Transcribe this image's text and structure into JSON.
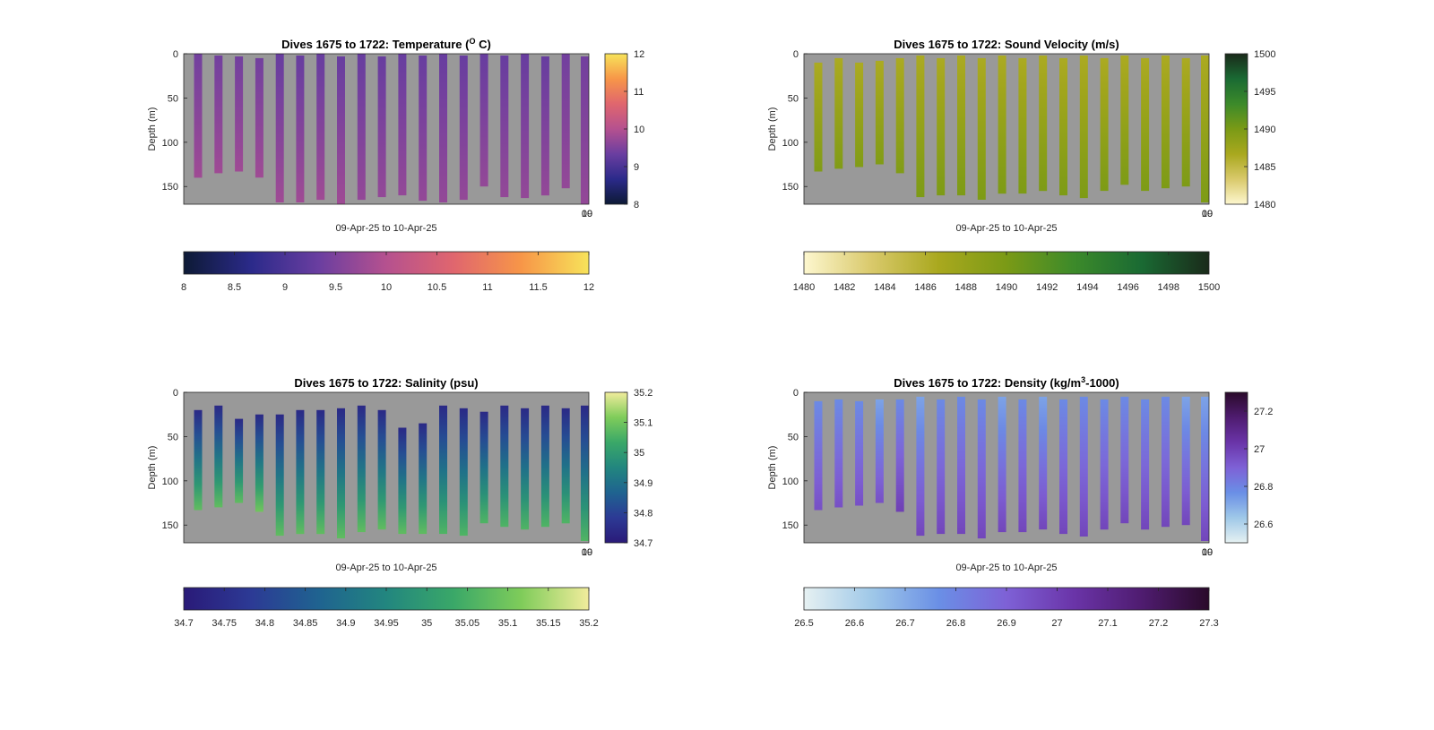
{
  "figure": {
    "background": "#ffffff",
    "axes_background": "#999999"
  },
  "chart_data": [
    {
      "type": "heatmap",
      "title": "Dives 1675 to 1722: Temperature (",
      "title_super": "O",
      "title_tail": " C)",
      "xlabel": "09-Apr-25 to 10-Apr-25",
      "ylabel": "Depth (m)",
      "x_tick_labels": [
        "09",
        "10"
      ],
      "y_ticks": [
        0,
        50,
        100,
        150
      ],
      "ylim": [
        0,
        170
      ],
      "y_reversed": true,
      "colormap": [
        "#0d1a35",
        "#2b2a8a",
        "#6a3ea0",
        "#b5518f",
        "#e0666e",
        "#f79648",
        "#f7e35a"
      ],
      "clim": [
        8,
        12
      ],
      "right_colorbar_ticks": [
        8,
        9,
        10,
        11,
        12
      ],
      "bottom_colorbar_ticks": [
        "8",
        "8.5",
        "9",
        "9.5",
        "10",
        "10.5",
        "11",
        "11.5",
        "12"
      ],
      "profiles": [
        {
          "top": 0,
          "bottom": 140,
          "v_top": 9.4,
          "v_bottom": 9.8
        },
        {
          "top": 2,
          "bottom": 135,
          "v_top": 9.4,
          "v_bottom": 9.8
        },
        {
          "top": 3,
          "bottom": 133,
          "v_top": 9.4,
          "v_bottom": 9.8
        },
        {
          "top": 5,
          "bottom": 140,
          "v_top": 9.4,
          "v_bottom": 9.8
        },
        {
          "top": 0,
          "bottom": 168,
          "v_top": 9.3,
          "v_bottom": 9.8
        },
        {
          "top": 2,
          "bottom": 168,
          "v_top": 9.3,
          "v_bottom": 9.8
        },
        {
          "top": 0,
          "bottom": 165,
          "v_top": 9.3,
          "v_bottom": 9.8
        },
        {
          "top": 3,
          "bottom": 171,
          "v_top": 9.3,
          "v_bottom": 9.8
        },
        {
          "top": 0,
          "bottom": 165,
          "v_top": 9.3,
          "v_bottom": 9.7
        },
        {
          "top": 3,
          "bottom": 162,
          "v_top": 9.3,
          "v_bottom": 9.7
        },
        {
          "top": 0,
          "bottom": 160,
          "v_top": 9.3,
          "v_bottom": 9.7
        },
        {
          "top": 2,
          "bottom": 166,
          "v_top": 9.3,
          "v_bottom": 9.7
        },
        {
          "top": 0,
          "bottom": 168,
          "v_top": 9.3,
          "v_bottom": 9.7
        },
        {
          "top": 2,
          "bottom": 165,
          "v_top": 9.3,
          "v_bottom": 9.7
        },
        {
          "top": 0,
          "bottom": 150,
          "v_top": 9.3,
          "v_bottom": 9.7
        },
        {
          "top": 2,
          "bottom": 162,
          "v_top": 9.3,
          "v_bottom": 9.7
        },
        {
          "top": 0,
          "bottom": 163,
          "v_top": 9.3,
          "v_bottom": 9.7
        },
        {
          "top": 3,
          "bottom": 160,
          "v_top": 9.3,
          "v_bottom": 9.7
        },
        {
          "top": 0,
          "bottom": 152,
          "v_top": 9.4,
          "v_bottom": 9.7
        },
        {
          "top": 3,
          "bottom": 170,
          "v_top": 9.4,
          "v_bottom": 9.7
        }
      ]
    },
    {
      "type": "heatmap",
      "title": "Dives 1675 to 1722: Sound Velocity (m/s)",
      "title_super": "",
      "title_tail": "",
      "xlabel": "09-Apr-25 to 10-Apr-25",
      "ylabel": "Depth (m)",
      "x_tick_labels": [
        "09",
        "10"
      ],
      "y_ticks": [
        0,
        50,
        100,
        150
      ],
      "ylim": [
        0,
        170
      ],
      "y_reversed": true,
      "colormap": [
        "#fdf7cf",
        "#d9c96b",
        "#a9a81e",
        "#7a9a16",
        "#3c8a2a",
        "#1a6a33",
        "#1a2a1a"
      ],
      "clim": [
        1480,
        1500
      ],
      "right_colorbar_ticks": [
        1480,
        1485,
        1490,
        1495,
        1500
      ],
      "bottom_colorbar_ticks": [
        "1480",
        "1482",
        "1484",
        "1486",
        "1488",
        "1490",
        "1492",
        "1494",
        "1496",
        "1498",
        "1500"
      ],
      "profiles": [
        {
          "top": 10,
          "bottom": 133,
          "v_top": 1486.5,
          "v_bottom": 1489.5
        },
        {
          "top": 5,
          "bottom": 130,
          "v_top": 1486.5,
          "v_bottom": 1489.5
        },
        {
          "top": 10,
          "bottom": 128,
          "v_top": 1486.5,
          "v_bottom": 1489.5
        },
        {
          "top": 8,
          "bottom": 125,
          "v_top": 1486.5,
          "v_bottom": 1489.5
        },
        {
          "top": 5,
          "bottom": 135,
          "v_top": 1486.5,
          "v_bottom": 1489.5
        },
        {
          "top": 2,
          "bottom": 162,
          "v_top": 1486.5,
          "v_bottom": 1489.8
        },
        {
          "top": 5,
          "bottom": 160,
          "v_top": 1486.5,
          "v_bottom": 1489.8
        },
        {
          "top": 2,
          "bottom": 160,
          "v_top": 1486.5,
          "v_bottom": 1489.8
        },
        {
          "top": 5,
          "bottom": 165,
          "v_top": 1486.5,
          "v_bottom": 1489.8
        },
        {
          "top": 2,
          "bottom": 158,
          "v_top": 1486.5,
          "v_bottom": 1489.8
        },
        {
          "top": 5,
          "bottom": 158,
          "v_top": 1486.5,
          "v_bottom": 1489.8
        },
        {
          "top": 2,
          "bottom": 155,
          "v_top": 1486.5,
          "v_bottom": 1489.8
        },
        {
          "top": 5,
          "bottom": 160,
          "v_top": 1486.5,
          "v_bottom": 1489.8
        },
        {
          "top": 2,
          "bottom": 163,
          "v_top": 1486.5,
          "v_bottom": 1489.8
        },
        {
          "top": 5,
          "bottom": 155,
          "v_top": 1486.5,
          "v_bottom": 1489.8
        },
        {
          "top": 2,
          "bottom": 148,
          "v_top": 1486.5,
          "v_bottom": 1489.8
        },
        {
          "top": 5,
          "bottom": 155,
          "v_top": 1486.5,
          "v_bottom": 1489.8
        },
        {
          "top": 2,
          "bottom": 152,
          "v_top": 1486.5,
          "v_bottom": 1489.8
        },
        {
          "top": 5,
          "bottom": 150,
          "v_top": 1486.5,
          "v_bottom": 1489.8
        },
        {
          "top": 2,
          "bottom": 168,
          "v_top": 1486.5,
          "v_bottom": 1489.8
        }
      ]
    },
    {
      "type": "heatmap",
      "title": "Dives 1675 to 1722: Salinity (psu)",
      "title_super": "",
      "title_tail": "",
      "xlabel": "09-Apr-25 to 10-Apr-25",
      "ylabel": "Depth (m)",
      "x_tick_labels": [
        "09",
        "10"
      ],
      "y_ticks": [
        0,
        50,
        100,
        150
      ],
      "ylim": [
        0,
        170
      ],
      "y_reversed": true,
      "colormap": [
        "#2a1a78",
        "#2c3a95",
        "#1f6390",
        "#22867f",
        "#3aa868",
        "#7fcc5a",
        "#f1ec9c"
      ],
      "clim": [
        34.7,
        35.2
      ],
      "right_colorbar_ticks": [
        34.7,
        34.8,
        34.9,
        35.0,
        35.1,
        35.2
      ],
      "right_colorbar_tick_labels": [
        "34.7",
        "34.8",
        "34.9",
        "35",
        "35.1",
        "35.2"
      ],
      "bottom_colorbar_ticks": [
        "34.7",
        "34.75",
        "34.8",
        "34.85",
        "34.9",
        "34.95",
        "35",
        "35.05",
        "35.1",
        "35.15",
        "35.2"
      ],
      "profiles": [
        {
          "top": 20,
          "bottom": 133,
          "v_top": 34.74,
          "v_bottom": 35.08
        },
        {
          "top": 15,
          "bottom": 130,
          "v_top": 34.74,
          "v_bottom": 35.08
        },
        {
          "top": 30,
          "bottom": 125,
          "v_top": 34.74,
          "v_bottom": 35.08
        },
        {
          "top": 25,
          "bottom": 135,
          "v_top": 34.74,
          "v_bottom": 35.1
        },
        {
          "top": 25,
          "bottom": 162,
          "v_top": 34.74,
          "v_bottom": 35.08
        },
        {
          "top": 20,
          "bottom": 160,
          "v_top": 34.74,
          "v_bottom": 35.08
        },
        {
          "top": 20,
          "bottom": 160,
          "v_top": 34.74,
          "v_bottom": 35.08
        },
        {
          "top": 18,
          "bottom": 165,
          "v_top": 34.74,
          "v_bottom": 35.08
        },
        {
          "top": 15,
          "bottom": 158,
          "v_top": 34.74,
          "v_bottom": 35.08
        },
        {
          "top": 20,
          "bottom": 155,
          "v_top": 34.74,
          "v_bottom": 35.08
        },
        {
          "top": 40,
          "bottom": 160,
          "v_top": 34.74,
          "v_bottom": 35.08
        },
        {
          "top": 35,
          "bottom": 160,
          "v_top": 34.74,
          "v_bottom": 35.08
        },
        {
          "top": 15,
          "bottom": 160,
          "v_top": 34.74,
          "v_bottom": 35.06
        },
        {
          "top": 18,
          "bottom": 162,
          "v_top": 34.74,
          "v_bottom": 35.06
        },
        {
          "top": 22,
          "bottom": 148,
          "v_top": 34.74,
          "v_bottom": 35.06
        },
        {
          "top": 15,
          "bottom": 152,
          "v_top": 34.74,
          "v_bottom": 35.06
        },
        {
          "top": 18,
          "bottom": 155,
          "v_top": 34.74,
          "v_bottom": 35.06
        },
        {
          "top": 15,
          "bottom": 152,
          "v_top": 34.74,
          "v_bottom": 35.06
        },
        {
          "top": 18,
          "bottom": 148,
          "v_top": 34.74,
          "v_bottom": 35.06
        },
        {
          "top": 15,
          "bottom": 168,
          "v_top": 34.74,
          "v_bottom": 35.06
        }
      ]
    },
    {
      "type": "heatmap",
      "title": "Dives 1675 to 1722: Density (kg/m",
      "title_super": "3",
      "title_tail": "-1000)",
      "xlabel": "09-Apr-25 to 10-Apr-25",
      "ylabel": "Depth (m)",
      "x_tick_labels": [
        "09",
        "10"
      ],
      "y_ticks": [
        0,
        50,
        100,
        150
      ],
      "ylim": [
        0,
        170
      ],
      "y_reversed": true,
      "colormap": [
        "#e6f1f2",
        "#9fc8e8",
        "#6a8fe6",
        "#7e61d6",
        "#6a34a8",
        "#4f1c70",
        "#2a0a2a"
      ],
      "clim": [
        26.5,
        27.3
      ],
      "right_colorbar_ticks": [
        26.6,
        26.8,
        27.0,
        27.2
      ],
      "right_colorbar_tick_labels": [
        "26.6",
        "26.8",
        "27",
        "27.2"
      ],
      "bottom_colorbar_ticks": [
        "26.5",
        "26.6",
        "26.7",
        "26.8",
        "26.9",
        "27",
        "27.1",
        "27.2",
        "27.3"
      ],
      "profiles": [
        {
          "top": 10,
          "bottom": 133,
          "v_top": 26.78,
          "v_bottom": 26.95
        },
        {
          "top": 8,
          "bottom": 130,
          "v_top": 26.78,
          "v_bottom": 26.95
        },
        {
          "top": 10,
          "bottom": 128,
          "v_top": 26.78,
          "v_bottom": 26.95
        },
        {
          "top": 8,
          "bottom": 125,
          "v_top": 26.72,
          "v_bottom": 26.95
        },
        {
          "top": 8,
          "bottom": 135,
          "v_top": 26.78,
          "v_bottom": 27.0
        },
        {
          "top": 5,
          "bottom": 162,
          "v_top": 26.72,
          "v_bottom": 26.98
        },
        {
          "top": 8,
          "bottom": 160,
          "v_top": 26.78,
          "v_bottom": 26.98
        },
        {
          "top": 5,
          "bottom": 160,
          "v_top": 26.78,
          "v_bottom": 26.98
        },
        {
          "top": 8,
          "bottom": 165,
          "v_top": 26.78,
          "v_bottom": 26.98
        },
        {
          "top": 5,
          "bottom": 158,
          "v_top": 26.72,
          "v_bottom": 26.98
        },
        {
          "top": 8,
          "bottom": 158,
          "v_top": 26.78,
          "v_bottom": 26.98
        },
        {
          "top": 5,
          "bottom": 155,
          "v_top": 26.72,
          "v_bottom": 26.98
        },
        {
          "top": 8,
          "bottom": 160,
          "v_top": 26.78,
          "v_bottom": 26.98
        },
        {
          "top": 5,
          "bottom": 163,
          "v_top": 26.78,
          "v_bottom": 26.98
        },
        {
          "top": 8,
          "bottom": 155,
          "v_top": 26.78,
          "v_bottom": 26.98
        },
        {
          "top": 5,
          "bottom": 148,
          "v_top": 26.78,
          "v_bottom": 26.98
        },
        {
          "top": 8,
          "bottom": 155,
          "v_top": 26.78,
          "v_bottom": 26.98
        },
        {
          "top": 5,
          "bottom": 152,
          "v_top": 26.78,
          "v_bottom": 26.98
        },
        {
          "top": 5,
          "bottom": 150,
          "v_top": 26.72,
          "v_bottom": 26.98
        },
        {
          "top": 5,
          "bottom": 168,
          "v_top": 26.72,
          "v_bottom": 26.98
        }
      ]
    }
  ]
}
